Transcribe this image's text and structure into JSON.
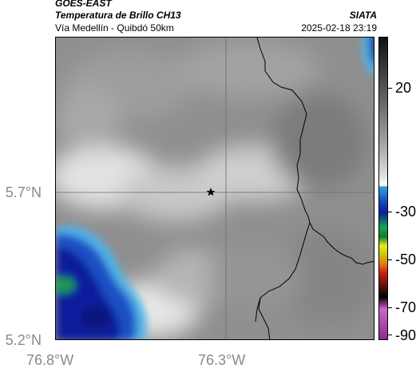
{
  "header": {
    "satellite": "GOES-EAST",
    "product": "Temperatura de Brillo CH13",
    "region": "Vía Medellín - Quibdó 50km",
    "org": "SIATA",
    "datetime": "2025-02-18 23:19"
  },
  "axes": {
    "y_ticks": [
      "5.7°N",
      "5.2°N"
    ],
    "x_ticks": [
      "76.8°W",
      "76.3°W"
    ]
  },
  "colorbar": {
    "labels": [
      "20",
      "-30",
      "-50",
      "-70",
      "-90"
    ]
  },
  "map": {
    "marker": "star-marker",
    "gridlines": true
  },
  "colors": {
    "cold_cloud_blue": "#0a1f9c",
    "warm_gray": "#8c8c8c",
    "boundary": "#000000"
  }
}
